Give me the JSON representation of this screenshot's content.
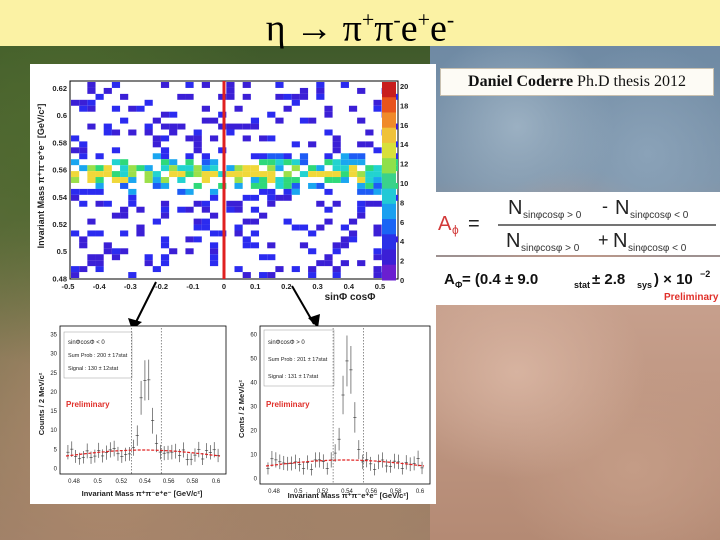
{
  "slide": {
    "title_eta": "η",
    "title_arrow": "→",
    "title_pi": "π",
    "title_pi_plus": "+",
    "title_pi2": "π",
    "title_pi_minus": "-",
    "title_e": "e",
    "title_e_plus": "+",
    "title_e2": "e",
    "title_e_minus": "-",
    "credit_name": "Daniel Coderre",
    "credit_rest": " Ph.D thesis 2012"
  },
  "formula": {
    "a_symbol": "A",
    "a_sub": "ϕ",
    "equals": "=",
    "num_left": "N",
    "num_left_sub": "sinφcosφ > 0",
    "num_op": "-",
    "num_right": "N",
    "num_right_sub": "sinφcosφ < 0",
    "den_left": "N",
    "den_left_sub": "sinφcosφ > 0",
    "den_op": "+",
    "den_right": "N",
    "den_right_sub": "sinφcosφ < 0"
  },
  "asymmetry": {
    "lhs": "A",
    "lhs_sub": "Φ",
    "expr_open": " = (0.4 ± 9.0",
    "stat": "stat",
    "pm": " ± 2.8",
    "sys": "sys",
    "close": ") × 10",
    "exp": "−2",
    "preliminary": "Preliminary"
  },
  "heatmap": {
    "ylabel": "Invariant Mass π⁺π⁻e⁺e⁻ [GeV/c²]",
    "xlabel": "sinΦ cosΦ",
    "y_ticks": [
      "0.62",
      "0.6",
      "0.58",
      "0.56",
      "0.54",
      "0.52",
      "0.5",
      "0.48"
    ],
    "x_ticks": [
      "-0.5",
      "-0.4",
      "-0.3",
      "-0.2",
      "-0.1",
      "0",
      "0.1",
      "0.2",
      "0.3",
      "0.4",
      "0.5"
    ],
    "z_ticks": [
      "20",
      "18",
      "16",
      "14",
      "12",
      "10",
      "8",
      "6",
      "4",
      "2",
      "0"
    ]
  },
  "hist_left": {
    "ylabel": "Counts / 2 MeV/c²",
    "legend1": "sinΦcosΦ < 0",
    "legend2": "Sum Prob : 200 ± 17stat",
    "legend3": "Signal : 130 ± 12stat",
    "preliminary": "Preliminary",
    "xlabel": "Invariant Mass π⁺π⁻e⁺e⁻ [GeV/c²]",
    "y_ticks": [
      "35",
      "30",
      "25",
      "20",
      "15",
      "10",
      "5",
      "0"
    ],
    "x_ticks": [
      "0.48",
      "0.5",
      "0.52",
      "0.54",
      "0.56",
      "0.58",
      "0.6"
    ]
  },
  "hist_right": {
    "ylabel": "Conts / 2 MeV/c²",
    "legend1": "sinΦcosΦ > 0",
    "legend2": "Sum Prob : 201 ± 17stat",
    "legend3": "Signal : 131 ± 17stat",
    "preliminary": "Preliminary",
    "xlabel": "Invariant Mass π⁺π⁻e⁺e⁻ [GeV/c²]",
    "y_ticks": [
      "60",
      "50",
      "40",
      "30",
      "20",
      "10",
      "0"
    ],
    "x_ticks": [
      "0.48",
      "0.5",
      "0.52",
      "0.54",
      "0.56",
      "0.58",
      "0.6"
    ]
  },
  "colors": {
    "title_bg": "#fbf2a4",
    "red_line": "#e02020",
    "formula_red": "#d23a3a",
    "preliminary": "#e0302a"
  }
}
